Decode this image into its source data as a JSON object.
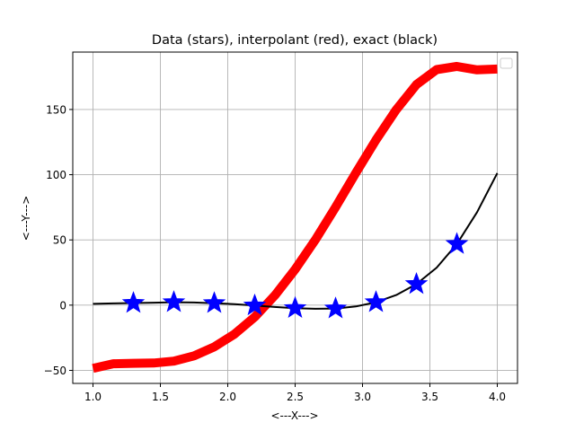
{
  "chart_data": {
    "type": "line",
    "title": "Data (stars), interpolant (red), exact (black)",
    "xlabel": "<---X--->",
    "ylabel": "<---Y--->",
    "xlim": [
      0.85,
      4.15
    ],
    "ylim": [
      -60,
      194
    ],
    "xticks": [
      1.0,
      1.5,
      2.0,
      2.5,
      3.0,
      3.5,
      4.0
    ],
    "xtick_labels": [
      "1.0",
      "1.5",
      "2.0",
      "2.5",
      "3.0",
      "3.5",
      "4.0"
    ],
    "yticks": [
      -50,
      0,
      50,
      100,
      150
    ],
    "ytick_labels": [
      "−50",
      "0",
      "50",
      "100",
      "150"
    ],
    "grid": true,
    "legend": "top-right (empty)",
    "colors": {
      "data": "#0000ff",
      "interpolant": "#ff0000",
      "exact": "#000000",
      "grid": "#b0b0b0"
    },
    "series": [
      {
        "style": "stars",
        "x": [
          1.3,
          1.6,
          1.9,
          2.2,
          2.5,
          2.8,
          3.1,
          3.4,
          3.7
        ],
        "y": [
          1.6,
          2.2,
          1.5,
          -0.3,
          -2.3,
          -2.6,
          2.2,
          16.1,
          46.8
        ]
      },
      {
        "style": "thick-line",
        "x": [
          1.0,
          1.15,
          1.3,
          1.45,
          1.6,
          1.75,
          1.9,
          2.05,
          2.2,
          2.35,
          2.5,
          2.65,
          2.8,
          2.95,
          3.1,
          3.25,
          3.4,
          3.55,
          3.7,
          3.85,
          4.0
        ],
        "y": [
          -48.5,
          -44.9,
          -44.6,
          -44.4,
          -42.9,
          -38.9,
          -32.0,
          -22.2,
          -9.1,
          7.5,
          27.4,
          50.1,
          75.1,
          101.3,
          126.7,
          149.8,
          169.1,
          180.6,
          183.0,
          180.4,
          181.0
        ]
      },
      {
        "style": "line",
        "x": [
          1.0,
          1.15,
          1.3,
          1.45,
          1.6,
          1.75,
          1.9,
          2.05,
          2.2,
          2.35,
          2.5,
          2.65,
          2.8,
          2.95,
          3.1,
          3.25,
          3.4,
          3.55,
          3.7,
          3.85,
          4.0
        ],
        "y": [
          1.0,
          1.3,
          1.6,
          1.9,
          2.2,
          2.0,
          1.5,
          0.8,
          -0.3,
          -1.4,
          -2.3,
          -2.8,
          -2.6,
          -1.0,
          2.2,
          7.7,
          16.1,
          28.7,
          46.8,
          71.3,
          101.2
        ]
      }
    ]
  }
}
